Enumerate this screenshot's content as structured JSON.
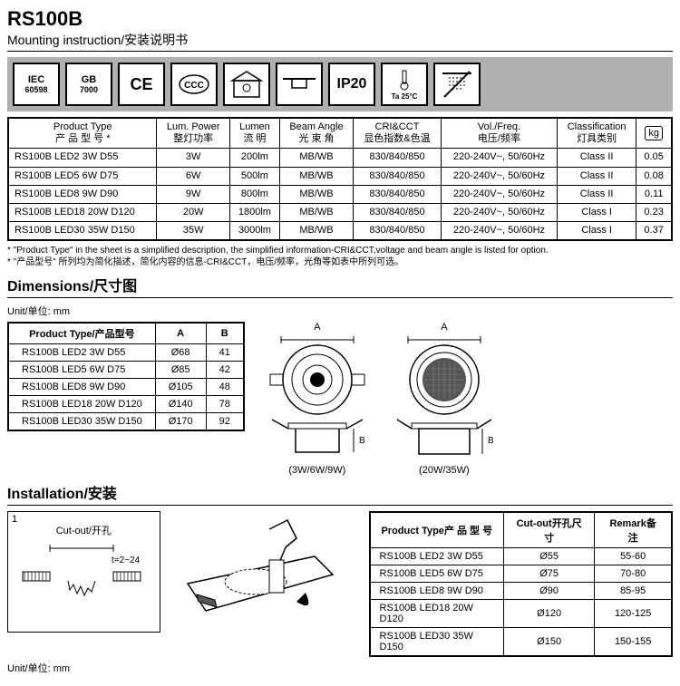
{
  "header": {
    "code": "RS100B",
    "subtitle": "Mounting instruction/安装说明书"
  },
  "iconbar": {
    "iec_top": "IEC",
    "iec_bot": "60598",
    "gb_top": "GB",
    "gb_bot": "7000",
    "ce": "CE",
    "ccc": "CCC",
    "ip": "IP20",
    "ta": "Ta 25°C"
  },
  "spec": {
    "headers": {
      "c1a": "Product Type",
      "c1b": "产 品 型 号 *",
      "c2a": "Lum. Power",
      "c2b": "整灯功率",
      "c3a": "Lumen",
      "c3b": "流 明",
      "c4a": "Beam Angle",
      "c4b": "光 束 角",
      "c5a": "CRI&CCT",
      "c5b": "显色指数&色温",
      "c6a": "Vol./Freq.",
      "c6b": "电压/频率",
      "c7a": "Classification",
      "c7b": "灯具类别",
      "c8": "kg"
    },
    "rows": [
      {
        "pt": "RS100B LED2 3W D55",
        "pw": "3W",
        "lm": "200lm",
        "ba": "MB/WB",
        "cri": "830/840/850",
        "vf": "220-240V~, 50/60Hz",
        "cl": "Class II",
        "kg": "0.05"
      },
      {
        "pt": "RS100B LED5 6W D75",
        "pw": "6W",
        "lm": "500lm",
        "ba": "MB/WB",
        "cri": "830/840/850",
        "vf": "220-240V~, 50/60Hz",
        "cl": "Class II",
        "kg": "0.08"
      },
      {
        "pt": "RS100B LED8 9W D90",
        "pw": "9W",
        "lm": "800lm",
        "ba": "MB/WB",
        "cri": "830/840/850",
        "vf": "220-240V~, 50/60Hz",
        "cl": "Class II",
        "kg": "0.11"
      },
      {
        "pt": "RS100B LED18 20W D120",
        "pw": "20W",
        "lm": "1800lm",
        "ba": "MB/WB",
        "cri": "830/840/850",
        "vf": "220-240V~, 50/60Hz",
        "cl": "Class I",
        "kg": "0.23"
      },
      {
        "pt": "RS100B LED30 35W D150",
        "pw": "35W",
        "lm": "3000lm",
        "ba": "MB/WB",
        "cri": "830/840/850",
        "vf": "220-240V~, 50/60Hz",
        "cl": "Class I",
        "kg": "0.37"
      }
    ]
  },
  "footnote": {
    "l1": "* \"Product Type\" in the sheet is a simplified description, the simplified information-CRI&CCT,voltage and beam angle is listed for option.",
    "l2": "* \"产品型号\" 所列均为简化描述，简化内容的信息-CRI&CCT，电压/频率，光角等如表中所列可选。"
  },
  "dimensions": {
    "title": "Dimensions/尺寸图",
    "unit": "Unit/单位: mm",
    "headers": {
      "pt": "Product Type/产品型号",
      "a": "A",
      "b": "B"
    },
    "rows": [
      {
        "pt": "RS100B LED2 3W D55",
        "a": "Ø68",
        "b": "41"
      },
      {
        "pt": "RS100B LED5 6W D75",
        "a": "Ø85",
        "b": "42"
      },
      {
        "pt": "RS100B LED8 9W D90",
        "a": "Ø105",
        "b": "48"
      },
      {
        "pt": "RS100B LED18 20W D120",
        "a": "Ø140",
        "b": "78"
      },
      {
        "pt": "RS100B LED30 35W D150",
        "a": "Ø170",
        "b": "92"
      }
    ],
    "diag1_label": "(3W/6W/9W)",
    "diag2_label": "(20W/35W)",
    "dim_a": "A",
    "dim_b": "B"
  },
  "installation": {
    "title": "Installation/安装",
    "step": "1",
    "cutout_label": "Cut-out/开孔",
    "thickness": "t=2~24",
    "unit": "Unit/单位: mm",
    "headers": {
      "pt_a": "Product Type",
      "pt_b": "产 品 型 号",
      "co_a": "Cut-out",
      "co_b": "开孔尺寸",
      "rm_a": "Remark",
      "rm_b": "备  注"
    },
    "rows": [
      {
        "pt": "RS100B LED2 3W D55",
        "co": "Ø55",
        "rm": "55-60"
      },
      {
        "pt": "RS100B LED5 6W D75",
        "co": "Ø75",
        "rm": "70-80"
      },
      {
        "pt": "RS100B LED8 9W D90",
        "co": "Ø90",
        "rm": "85-95"
      },
      {
        "pt": "RS100B LED18 20W D120",
        "co": "Ø120",
        "rm": "120-125"
      },
      {
        "pt": "RS100B LED30 35W D150",
        "co": "Ø150",
        "rm": "150-155"
      }
    ]
  }
}
